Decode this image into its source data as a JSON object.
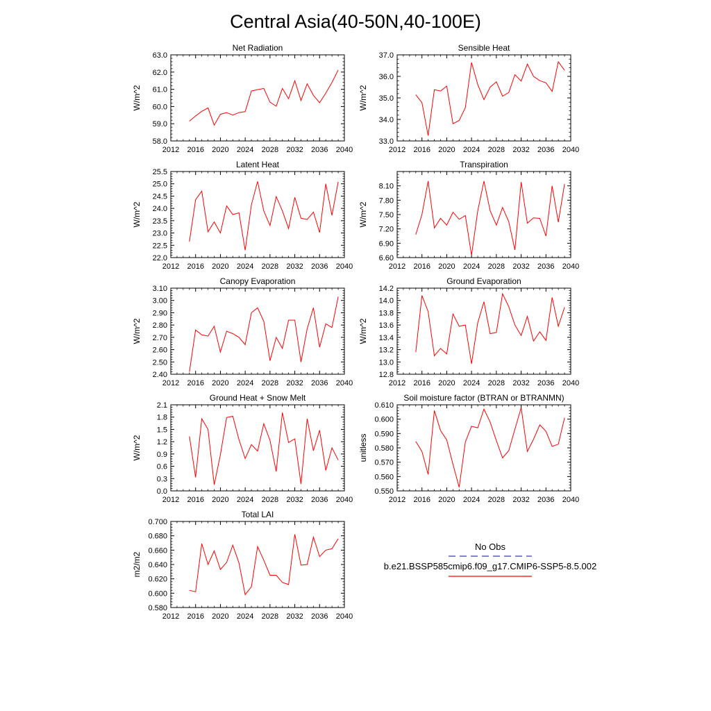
{
  "title": "Central Asia(40-50N,40-100E)",
  "line_color": "#ff0000",
  "obs_color": "#3b3bb0",
  "legend": {
    "obs_label": "No Obs",
    "model_label": "b.e21.BSSP585cmip6.f09_g17.CMIP6-SSP5-8.5.002"
  },
  "x_ticks": [
    "2012",
    "2016",
    "2020",
    "2024",
    "2028",
    "2032",
    "2036",
    "2040"
  ],
  "chart_data": [
    {
      "type": "line",
      "title": "Net Radiation",
      "ylabel": "W/m^2",
      "xlim": [
        2012,
        2040
      ],
      "ylim": [
        58.0,
        63.0
      ],
      "y_ticks": [
        "58.0",
        "59.0",
        "60.0",
        "61.0",
        "62.0",
        "63.0"
      ],
      "x": [
        2015,
        2016,
        2017,
        2018,
        2019,
        2020,
        2021,
        2022,
        2023,
        2024,
        2025,
        2026,
        2027,
        2028,
        2029,
        2030,
        2031,
        2032,
        2033,
        2034,
        2035,
        2036,
        2037,
        2038,
        2039
      ],
      "values": [
        59.15,
        59.45,
        59.72,
        59.92,
        58.92,
        59.55,
        59.65,
        59.5,
        59.65,
        59.7,
        60.9,
        60.98,
        61.05,
        60.25,
        60.02,
        61.05,
        60.45,
        61.5,
        60.35,
        61.32,
        60.65,
        60.22,
        60.78,
        61.4,
        62.12
      ]
    },
    {
      "type": "line",
      "title": "Sensible Heat",
      "ylabel": "W/m^2",
      "xlim": [
        2012,
        2040
      ],
      "ylim": [
        33.0,
        37.0
      ],
      "y_ticks": [
        "33.0",
        "34.0",
        "35.0",
        "36.0",
        "37.0"
      ],
      "x": [
        2015,
        2016,
        2017,
        2018,
        2019,
        2020,
        2021,
        2022,
        2023,
        2024,
        2025,
        2026,
        2027,
        2028,
        2029,
        2030,
        2031,
        2032,
        2033,
        2034,
        2035,
        2036,
        2037,
        2038,
        2039
      ],
      "values": [
        35.15,
        34.78,
        33.25,
        35.38,
        35.32,
        35.55,
        33.8,
        33.95,
        34.55,
        36.65,
        35.62,
        34.92,
        35.5,
        35.75,
        35.08,
        35.25,
        36.08,
        35.78,
        36.57,
        36.0,
        35.8,
        35.7,
        35.3,
        36.68,
        36.28
      ]
    },
    {
      "type": "line",
      "title": "Latent Heat",
      "ylabel": "W/m^2",
      "xlim": [
        2012,
        2040
      ],
      "ylim": [
        22.0,
        25.5
      ],
      "y_ticks": [
        "22.0",
        "22.5",
        "23.0",
        "23.5",
        "24.0",
        "24.5",
        "25.0",
        "25.5"
      ],
      "x": [
        2015,
        2016,
        2017,
        2018,
        2019,
        2020,
        2021,
        2022,
        2023,
        2024,
        2025,
        2026,
        2027,
        2028,
        2029,
        2030,
        2031,
        2032,
        2033,
        2034,
        2035,
        2036,
        2037,
        2038,
        2039
      ],
      "values": [
        22.65,
        24.35,
        24.7,
        23.05,
        23.45,
        23.0,
        24.1,
        23.75,
        23.82,
        22.3,
        24.15,
        25.1,
        23.9,
        23.3,
        24.48,
        23.9,
        23.18,
        24.45,
        23.6,
        23.55,
        23.85,
        23.02,
        25.0,
        23.72,
        25.08
      ]
    },
    {
      "type": "line",
      "title": "Transpiration",
      "ylabel": "W/m^2",
      "xlim": [
        2012,
        2040
      ],
      "ylim": [
        6.6,
        8.4
      ],
      "y_ticks": [
        "6.60",
        "6.90",
        "7.20",
        "7.50",
        "7.80",
        "8.10"
      ],
      "x": [
        2015,
        2016,
        2017,
        2018,
        2019,
        2020,
        2021,
        2022,
        2023,
        2024,
        2025,
        2026,
        2027,
        2028,
        2029,
        2030,
        2031,
        2032,
        2033,
        2034,
        2035,
        2036,
        2037,
        2038,
        2039
      ],
      "values": [
        7.08,
        7.5,
        8.2,
        7.22,
        7.42,
        7.28,
        7.55,
        7.4,
        7.48,
        6.65,
        7.58,
        8.2,
        7.58,
        7.28,
        7.65,
        7.35,
        6.76,
        8.18,
        7.32,
        7.43,
        7.42,
        7.05,
        8.1,
        7.34,
        8.14
      ]
    },
    {
      "type": "line",
      "title": "Canopy Evaporation",
      "ylabel": "W/m^2",
      "xlim": [
        2012,
        2040
      ],
      "ylim": [
        2.4,
        3.1
      ],
      "y_ticks": [
        "2.40",
        "2.50",
        "2.60",
        "2.70",
        "2.80",
        "2.90",
        "3.00",
        "3.10"
      ],
      "x": [
        2015,
        2016,
        2017,
        2018,
        2019,
        2020,
        2021,
        2022,
        2023,
        2024,
        2025,
        2026,
        2027,
        2028,
        2029,
        2030,
        2031,
        2032,
        2033,
        2034,
        2035,
        2036,
        2037,
        2038,
        2039
      ],
      "values": [
        2.42,
        2.76,
        2.72,
        2.71,
        2.79,
        2.58,
        2.75,
        2.73,
        2.7,
        2.64,
        2.9,
        2.94,
        2.83,
        2.51,
        2.7,
        2.61,
        2.84,
        2.84,
        2.5,
        2.77,
        2.94,
        2.62,
        2.81,
        2.78,
        3.03
      ]
    },
    {
      "type": "line",
      "title": "Ground Evaporation",
      "ylabel": "W/m^2",
      "xlim": [
        2012,
        2040
      ],
      "ylim": [
        12.8,
        14.2
      ],
      "y_ticks": [
        "12.8",
        "13.0",
        "13.2",
        "13.4",
        "13.6",
        "13.8",
        "14.0",
        "14.2"
      ],
      "x": [
        2015,
        2016,
        2017,
        2018,
        2019,
        2020,
        2021,
        2022,
        2023,
        2024,
        2025,
        2026,
        2027,
        2028,
        2029,
        2030,
        2031,
        2032,
        2033,
        2034,
        2035,
        2036,
        2037,
        2038,
        2039
      ],
      "values": [
        13.16,
        14.08,
        13.82,
        13.1,
        13.22,
        13.13,
        13.78,
        13.58,
        13.6,
        12.97,
        13.64,
        13.98,
        13.46,
        13.48,
        14.11,
        13.9,
        13.6,
        13.43,
        13.74,
        13.34,
        13.49,
        13.35,
        14.05,
        13.58,
        13.89
      ]
    },
    {
      "type": "line",
      "title": "Ground Heat + Snow Melt",
      "ylabel": "W/m^2",
      "xlim": [
        2012,
        2040
      ],
      "ylim": [
        0.0,
        2.1
      ],
      "y_ticks": [
        "0.0",
        "0.3",
        "0.6",
        "0.9",
        "1.2",
        "1.5",
        "1.8",
        "2.1"
      ],
      "x": [
        2015,
        2016,
        2017,
        2018,
        2019,
        2020,
        2021,
        2022,
        2023,
        2024,
        2025,
        2026,
        2027,
        2028,
        2029,
        2030,
        2031,
        2032,
        2033,
        2034,
        2035,
        2036,
        2037,
        2038,
        2039
      ],
      "values": [
        1.33,
        0.33,
        1.76,
        1.5,
        0.15,
        0.88,
        1.79,
        1.82,
        1.25,
        0.79,
        1.13,
        0.97,
        1.64,
        1.23,
        0.47,
        1.91,
        1.18,
        1.27,
        0.17,
        1.76,
        0.98,
        1.48,
        0.5,
        1.05,
        0.75
      ]
    },
    {
      "type": "line",
      "title": "Soil moisture factor (BTRAN or BTRANMN)",
      "ylabel": "unitless",
      "xlim": [
        2012,
        2040
      ],
      "ylim": [
        0.55,
        0.61
      ],
      "y_ticks": [
        "0.550",
        "0.560",
        "0.570",
        "0.580",
        "0.590",
        "0.600",
        "0.610"
      ],
      "x": [
        2015,
        2016,
        2017,
        2018,
        2019,
        2020,
        2021,
        2022,
        2023,
        2024,
        2025,
        2026,
        2027,
        2028,
        2029,
        2030,
        2031,
        2032,
        2033,
        2034,
        2035,
        2036,
        2037,
        2038,
        2039
      ],
      "values": [
        0.5845,
        0.5775,
        0.5615,
        0.606,
        0.592,
        0.5855,
        0.5685,
        0.5525,
        0.584,
        0.595,
        0.594,
        0.607,
        0.598,
        0.585,
        0.573,
        0.578,
        0.593,
        0.608,
        0.5775,
        0.586,
        0.596,
        0.5915,
        0.581,
        0.5825,
        0.601
      ]
    },
    {
      "type": "line",
      "title": "Total LAI",
      "ylabel": "m2/m2",
      "xlim": [
        2012,
        2040
      ],
      "ylim": [
        0.58,
        0.7
      ],
      "y_ticks": [
        "0.580",
        "0.600",
        "0.620",
        "0.640",
        "0.660",
        "0.680",
        "0.700"
      ],
      "x": [
        2015,
        2016,
        2017,
        2018,
        2019,
        2020,
        2021,
        2022,
        2023,
        2024,
        2025,
        2026,
        2027,
        2028,
        2029,
        2030,
        2031,
        2032,
        2033,
        2034,
        2035,
        2036,
        2037,
        2038,
        2039
      ],
      "values": [
        0.604,
        0.602,
        0.669,
        0.64,
        0.659,
        0.633,
        0.643,
        0.667,
        0.642,
        0.598,
        0.609,
        0.665,
        0.646,
        0.625,
        0.625,
        0.615,
        0.612,
        0.682,
        0.639,
        0.64,
        0.678,
        0.651,
        0.66,
        0.662,
        0.676
      ]
    }
  ]
}
